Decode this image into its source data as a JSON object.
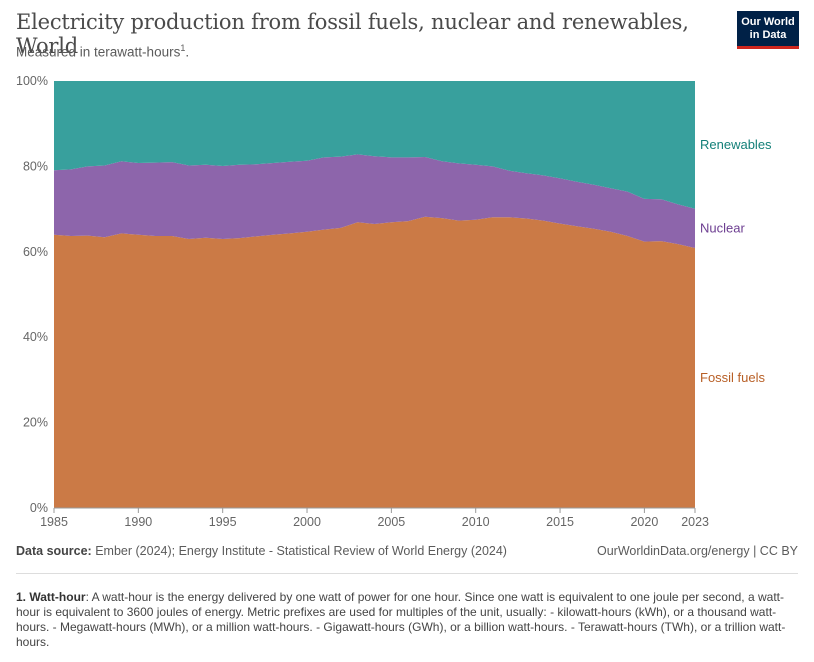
{
  "header": {
    "title": "Electricity production from fossil fuels, nuclear and renewables, World",
    "subtitle": "Measured in terawatt-hours",
    "subtitle_footnote_mark": "1",
    "subtitle_end": "."
  },
  "logo": {
    "line1": "Our World",
    "line2": "in Data"
  },
  "footer": {
    "source_label": "Data source:",
    "source_text": " Ember (2024); Energy Institute - Statistical Review of World Energy (2024)",
    "credit": "OurWorldinData.org/energy | CC BY",
    "note_number": "1.",
    "note_term": "Watt-hour",
    "note_text": ": A watt-hour is the energy delivered by one watt of power for one hour. Since one watt is equivalent to one joule per second, a watt-hour is equivalent to 3600 joules of energy. Metric prefixes are used for multiples of the unit, usually: - kilowatt-hours (kWh), or a thousand watt-hours. - Megawatt-hours (MWh), or a million watt-hours. - Gigawatt-hours (GWh), or a billion watt-hours. - Terawatt-hours (TWh), or a trillion watt-hours."
  },
  "chart_data": {
    "type": "area",
    "stacked": true,
    "relative": true,
    "x": [
      1985,
      1986,
      1987,
      1988,
      1989,
      1990,
      1991,
      1992,
      1993,
      1994,
      1995,
      1996,
      1997,
      1998,
      1999,
      2000,
      2001,
      2002,
      2003,
      2004,
      2005,
      2006,
      2007,
      2008,
      2009,
      2010,
      2011,
      2012,
      2013,
      2014,
      2015,
      2016,
      2017,
      2018,
      2019,
      2020,
      2021,
      2022,
      2023
    ],
    "x_tick_labels": [
      "1985",
      "1990",
      "1995",
      "2000",
      "2005",
      "2010",
      "2015",
      "2020",
      "2023"
    ],
    "y_tick_labels": [
      "0%",
      "20%",
      "40%",
      "60%",
      "80%",
      "100%"
    ],
    "ylim": [
      0,
      100
    ],
    "series": [
      {
        "name": "Fossil fuels",
        "color": "#cb7a46",
        "label_color": "#b85f26",
        "values": [
          64.0,
          63.7,
          63.8,
          63.4,
          64.3,
          64.0,
          63.7,
          63.7,
          63.0,
          63.3,
          63.0,
          63.2,
          63.6,
          64.0,
          64.3,
          64.7,
          65.2,
          65.6,
          66.9,
          66.5,
          66.9,
          67.2,
          68.2,
          67.9,
          67.3,
          67.5,
          68.1,
          68.1,
          67.8,
          67.3,
          66.6,
          66.0,
          65.4,
          64.7,
          63.7,
          62.4,
          62.5,
          61.8,
          60.9
        ]
      },
      {
        "name": "Nuclear",
        "color": "#8d65ab",
        "label_color": "#6d3e91",
        "values": [
          15.1,
          15.6,
          16.2,
          16.8,
          16.9,
          16.8,
          17.2,
          17.3,
          17.2,
          17.1,
          17.1,
          17.2,
          16.9,
          16.8,
          16.8,
          16.6,
          16.9,
          16.7,
          15.9,
          15.9,
          15.2,
          14.9,
          14.0,
          13.3,
          13.4,
          12.9,
          11.9,
          10.9,
          10.6,
          10.6,
          10.6,
          10.4,
          10.3,
          10.2,
          10.4,
          10.0,
          9.8,
          9.3,
          9.2
        ]
      },
      {
        "name": "Renewables",
        "color": "#38a09d",
        "label_color": "#148079",
        "values": [
          20.9,
          20.7,
          20.0,
          19.8,
          18.8,
          19.2,
          19.1,
          19.0,
          19.8,
          19.6,
          19.9,
          19.6,
          19.5,
          19.2,
          18.9,
          18.7,
          17.9,
          17.7,
          17.2,
          17.6,
          17.9,
          17.9,
          17.8,
          18.8,
          19.3,
          19.6,
          20.0,
          21.0,
          21.6,
          22.1,
          22.8,
          23.6,
          24.3,
          25.1,
          25.9,
          27.6,
          27.7,
          28.9,
          29.9
        ]
      }
    ]
  }
}
